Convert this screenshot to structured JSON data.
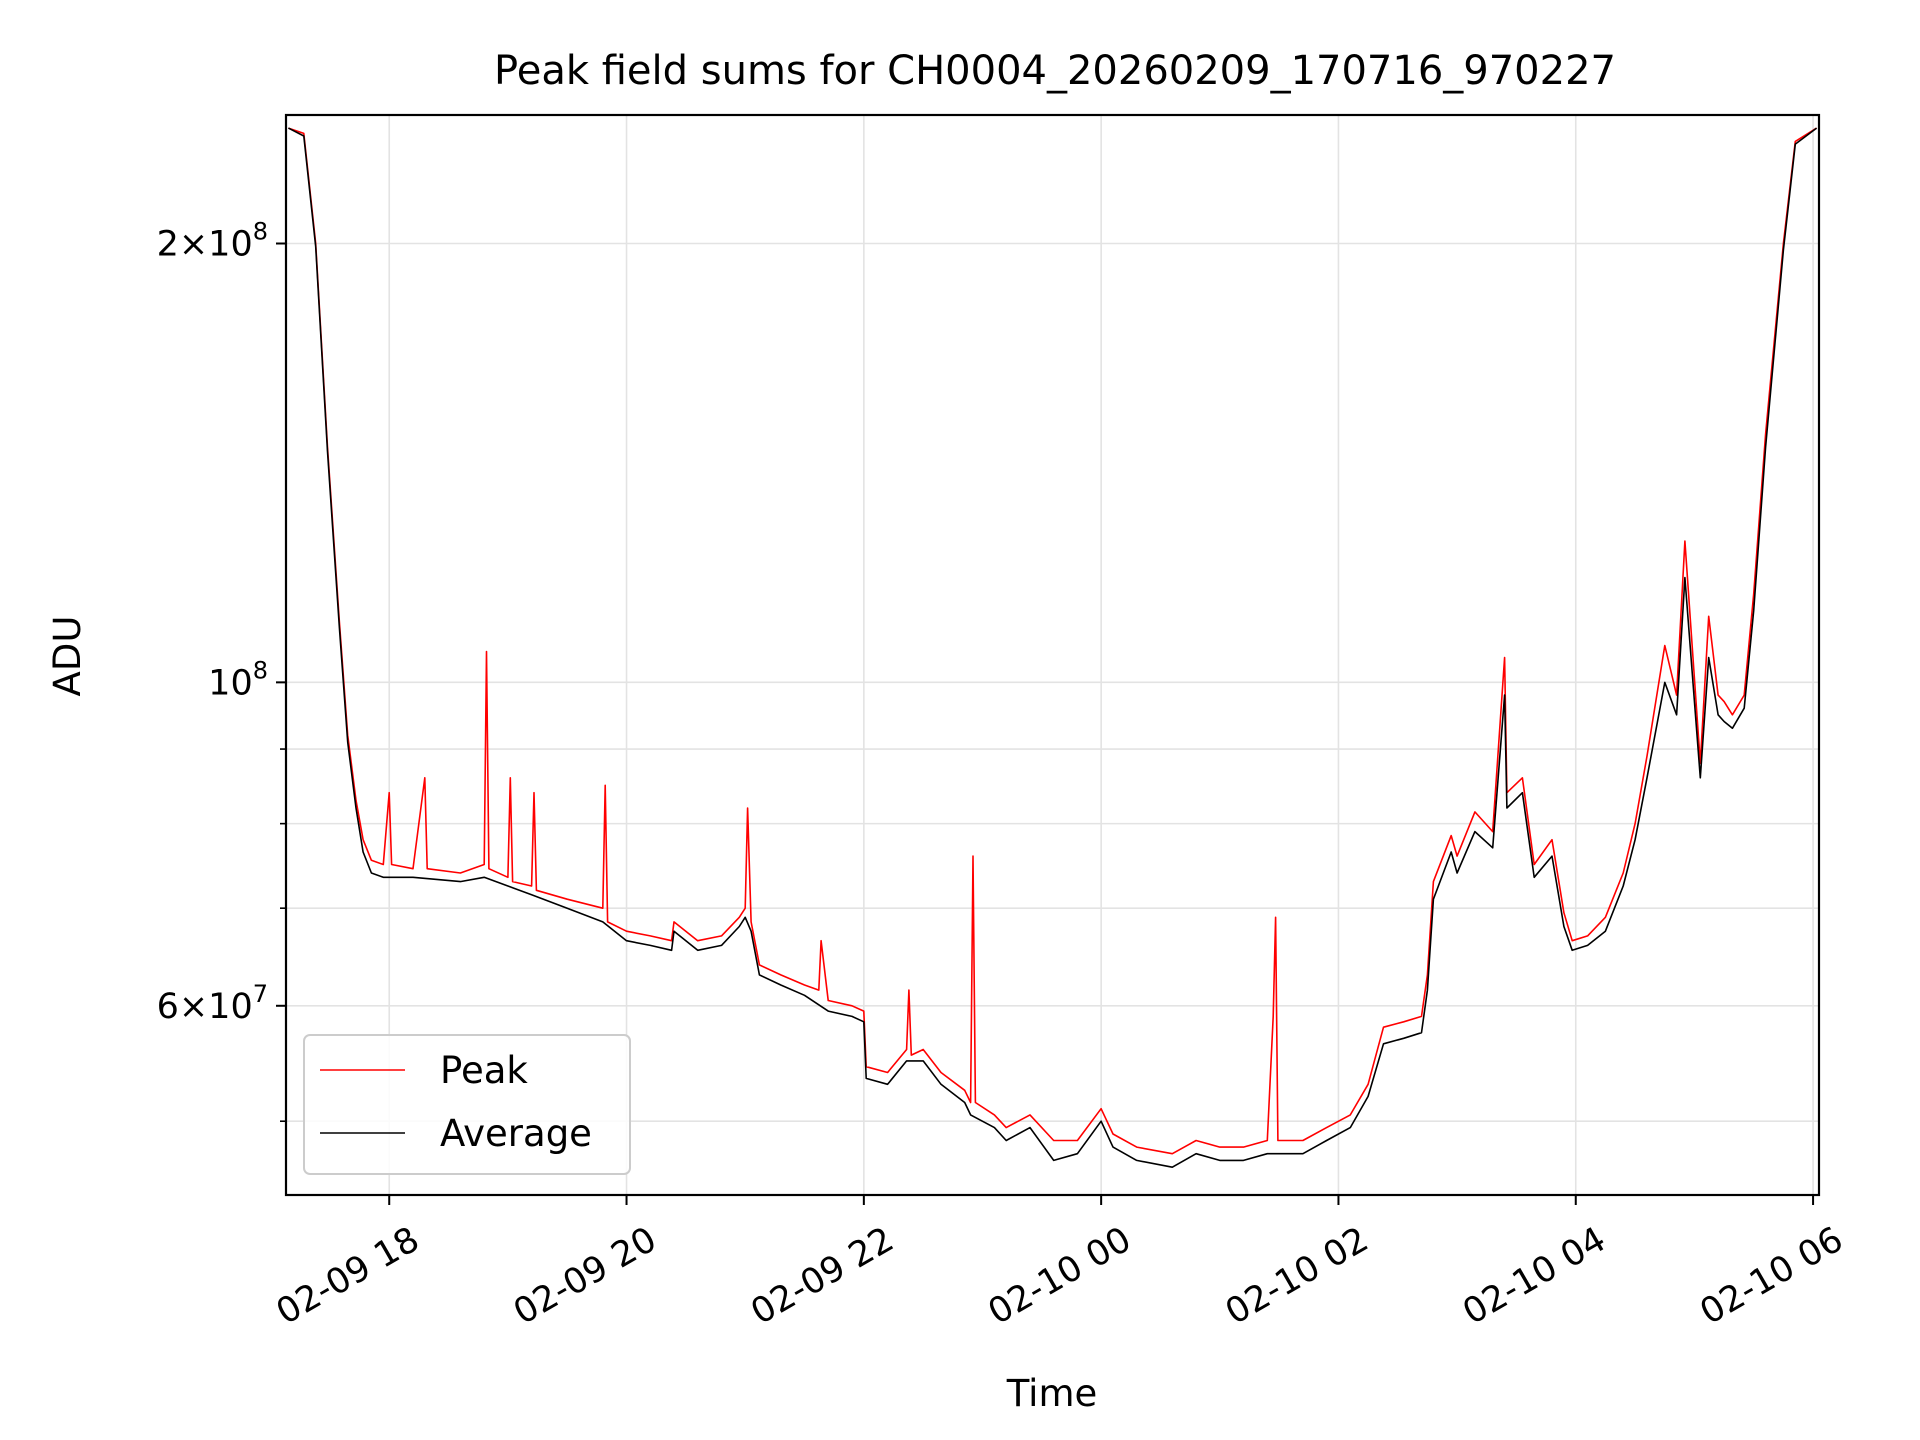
{
  "chart_data": {
    "type": "line",
    "title": "Peak field sums for CH0004_20260209_170716_970227",
    "xlabel": "Time",
    "ylabel": "ADU",
    "yscale": "log",
    "ylim": [
      44500000,
      245000000
    ],
    "xlim_hours": [
      -0.87,
      12.05
    ],
    "x_unit": "hours since 2026-02-09 18:00",
    "grid": true,
    "legend_position": "lower-left",
    "x_ticks": [
      {
        "value": 0,
        "label": "02-09 18"
      },
      {
        "value": 2,
        "label": "02-09 20"
      },
      {
        "value": 4,
        "label": "02-09 22"
      },
      {
        "value": 6,
        "label": "02-10 00"
      },
      {
        "value": 8,
        "label": "02-10 02"
      },
      {
        "value": 10,
        "label": "02-10 04"
      },
      {
        "value": 12,
        "label": "02-10 06"
      }
    ],
    "y_major_ticks": [
      {
        "value": 200000000,
        "mant": "2",
        "exp": "8"
      },
      {
        "value": 100000000,
        "mant": "",
        "exp": "8"
      },
      {
        "value": 60000000,
        "mant": "6",
        "exp": "7"
      }
    ],
    "y_minor_ticks": [
      50000000,
      70000000,
      80000000,
      90000000
    ],
    "series": [
      {
        "name": "Peak",
        "color": "#ff0000",
        "points": [
          [
            -0.85,
            240000000
          ],
          [
            -0.72,
            238000000
          ],
          [
            -0.62,
            200000000
          ],
          [
            -0.52,
            145000000
          ],
          [
            -0.42,
            110000000
          ],
          [
            -0.35,
            92000000
          ],
          [
            -0.28,
            83000000
          ],
          [
            -0.22,
            78000000
          ],
          [
            -0.15,
            75500000
          ],
          [
            -0.05,
            75000000
          ],
          [
            0.0,
            84000000
          ],
          [
            0.02,
            75000000
          ],
          [
            0.2,
            74500000
          ],
          [
            0.3,
            86000000
          ],
          [
            0.32,
            74500000
          ],
          [
            0.6,
            74000000
          ],
          [
            0.8,
            75000000
          ],
          [
            0.82,
            105000000
          ],
          [
            0.84,
            74500000
          ],
          [
            1.0,
            73500000
          ],
          [
            1.02,
            86000000
          ],
          [
            1.04,
            73000000
          ],
          [
            1.2,
            72500000
          ],
          [
            1.22,
            84000000
          ],
          [
            1.24,
            72000000
          ],
          [
            1.5,
            71000000
          ],
          [
            1.8,
            70000000
          ],
          [
            1.82,
            85000000
          ],
          [
            1.84,
            68500000
          ],
          [
            2.0,
            67500000
          ],
          [
            2.2,
            67000000
          ],
          [
            2.38,
            66500000
          ],
          [
            2.4,
            68500000
          ],
          [
            2.6,
            66500000
          ],
          [
            2.8,
            67000000
          ],
          [
            2.95,
            69000000
          ],
          [
            3.0,
            70000000
          ],
          [
            3.02,
            82000000
          ],
          [
            3.05,
            68500000
          ],
          [
            3.12,
            64000000
          ],
          [
            3.3,
            63000000
          ],
          [
            3.5,
            62000000
          ],
          [
            3.62,
            61500000
          ],
          [
            3.64,
            66500000
          ],
          [
            3.7,
            60500000
          ],
          [
            3.9,
            60000000
          ],
          [
            4.0,
            59500000
          ],
          [
            4.02,
            54500000
          ],
          [
            4.2,
            54000000
          ],
          [
            4.36,
            56000000
          ],
          [
            4.38,
            61500000
          ],
          [
            4.4,
            55500000
          ],
          [
            4.5,
            56000000
          ],
          [
            4.65,
            54000000
          ],
          [
            4.85,
            52500000
          ],
          [
            4.9,
            51500000
          ],
          [
            4.92,
            76000000
          ],
          [
            4.94,
            51500000
          ],
          [
            5.1,
            50500000
          ],
          [
            5.2,
            49500000
          ],
          [
            5.4,
            50500000
          ],
          [
            5.6,
            48500000
          ],
          [
            5.8,
            48500000
          ],
          [
            6.0,
            51000000
          ],
          [
            6.1,
            49000000
          ],
          [
            6.3,
            48000000
          ],
          [
            6.6,
            47500000
          ],
          [
            6.8,
            48500000
          ],
          [
            7.0,
            48000000
          ],
          [
            7.2,
            48000000
          ],
          [
            7.4,
            48500000
          ],
          [
            7.45,
            59000000
          ],
          [
            7.47,
            69000000
          ],
          [
            7.49,
            48500000
          ],
          [
            7.7,
            48500000
          ],
          [
            7.9,
            49500000
          ],
          [
            8.1,
            50500000
          ],
          [
            8.25,
            53000000
          ],
          [
            8.38,
            58000000
          ],
          [
            8.55,
            58500000
          ],
          [
            8.7,
            59000000
          ],
          [
            8.75,
            63000000
          ],
          [
            8.8,
            73000000
          ],
          [
            8.95,
            78500000
          ],
          [
            9.0,
            76000000
          ],
          [
            9.15,
            81500000
          ],
          [
            9.3,
            79000000
          ],
          [
            9.4,
            104000000
          ],
          [
            9.42,
            84000000
          ],
          [
            9.55,
            86000000
          ],
          [
            9.65,
            75000000
          ],
          [
            9.8,
            78000000
          ],
          [
            9.9,
            69500000
          ],
          [
            9.97,
            66500000
          ],
          [
            10.1,
            67000000
          ],
          [
            10.25,
            69000000
          ],
          [
            10.4,
            74000000
          ],
          [
            10.5,
            80000000
          ],
          [
            10.6,
            89000000
          ],
          [
            10.75,
            106000000
          ],
          [
            10.85,
            98000000
          ],
          [
            10.92,
            125000000
          ],
          [
            11.05,
            88000000
          ],
          [
            11.12,
            111000000
          ],
          [
            11.2,
            98000000
          ],
          [
            11.25,
            97000000
          ],
          [
            11.32,
            95000000
          ],
          [
            11.42,
            98000000
          ],
          [
            11.5,
            115000000
          ],
          [
            11.6,
            148000000
          ],
          [
            11.75,
            200000000
          ],
          [
            11.85,
            235000000
          ],
          [
            12.03,
            240000000
          ]
        ]
      },
      {
        "name": "Average",
        "color": "#000000",
        "points": [
          [
            -0.85,
            240000000
          ],
          [
            -0.72,
            237000000
          ],
          [
            -0.62,
            199000000
          ],
          [
            -0.52,
            144000000
          ],
          [
            -0.42,
            109000000
          ],
          [
            -0.35,
            91000000
          ],
          [
            -0.28,
            82000000
          ],
          [
            -0.22,
            76500000
          ],
          [
            -0.15,
            74000000
          ],
          [
            -0.05,
            73500000
          ],
          [
            0.2,
            73500000
          ],
          [
            0.6,
            73000000
          ],
          [
            0.8,
            73500000
          ],
          [
            1.0,
            72500000
          ],
          [
            1.2,
            71500000
          ],
          [
            1.5,
            70000000
          ],
          [
            1.8,
            68500000
          ],
          [
            2.0,
            66500000
          ],
          [
            2.2,
            66000000
          ],
          [
            2.38,
            65500000
          ],
          [
            2.4,
            67500000
          ],
          [
            2.6,
            65500000
          ],
          [
            2.8,
            66000000
          ],
          [
            2.95,
            68000000
          ],
          [
            3.0,
            69000000
          ],
          [
            3.05,
            67500000
          ],
          [
            3.12,
            63000000
          ],
          [
            3.3,
            62000000
          ],
          [
            3.5,
            61000000
          ],
          [
            3.7,
            59500000
          ],
          [
            3.9,
            59000000
          ],
          [
            4.0,
            58500000
          ],
          [
            4.02,
            53500000
          ],
          [
            4.2,
            53000000
          ],
          [
            4.36,
            55000000
          ],
          [
            4.5,
            55000000
          ],
          [
            4.65,
            53000000
          ],
          [
            4.85,
            51500000
          ],
          [
            4.9,
            50500000
          ],
          [
            5.1,
            49500000
          ],
          [
            5.2,
            48500000
          ],
          [
            5.4,
            49500000
          ],
          [
            5.6,
            47000000
          ],
          [
            5.8,
            47500000
          ],
          [
            6.0,
            50000000
          ],
          [
            6.1,
            48000000
          ],
          [
            6.3,
            47000000
          ],
          [
            6.6,
            46500000
          ],
          [
            6.8,
            47500000
          ],
          [
            7.0,
            47000000
          ],
          [
            7.2,
            47000000
          ],
          [
            7.4,
            47500000
          ],
          [
            7.7,
            47500000
          ],
          [
            7.9,
            48500000
          ],
          [
            8.1,
            49500000
          ],
          [
            8.25,
            52000000
          ],
          [
            8.38,
            56500000
          ],
          [
            8.55,
            57000000
          ],
          [
            8.7,
            57500000
          ],
          [
            8.75,
            61500000
          ],
          [
            8.8,
            71000000
          ],
          [
            8.95,
            76500000
          ],
          [
            9.0,
            74000000
          ],
          [
            9.15,
            79000000
          ],
          [
            9.3,
            77000000
          ],
          [
            9.4,
            98000000
          ],
          [
            9.42,
            82000000
          ],
          [
            9.55,
            84000000
          ],
          [
            9.65,
            73500000
          ],
          [
            9.8,
            76000000
          ],
          [
            9.9,
            68000000
          ],
          [
            9.97,
            65500000
          ],
          [
            10.1,
            66000000
          ],
          [
            10.25,
            67500000
          ],
          [
            10.4,
            72500000
          ],
          [
            10.5,
            78000000
          ],
          [
            10.6,
            86000000
          ],
          [
            10.75,
            100000000
          ],
          [
            10.85,
            95000000
          ],
          [
            10.92,
            118000000
          ],
          [
            11.05,
            86000000
          ],
          [
            11.12,
            104000000
          ],
          [
            11.2,
            95000000
          ],
          [
            11.25,
            94000000
          ],
          [
            11.32,
            93000000
          ],
          [
            11.42,
            96000000
          ],
          [
            11.5,
            112000000
          ],
          [
            11.6,
            145000000
          ],
          [
            11.75,
            198000000
          ],
          [
            11.85,
            234000000
          ],
          [
            12.03,
            240000000
          ]
        ]
      }
    ]
  }
}
